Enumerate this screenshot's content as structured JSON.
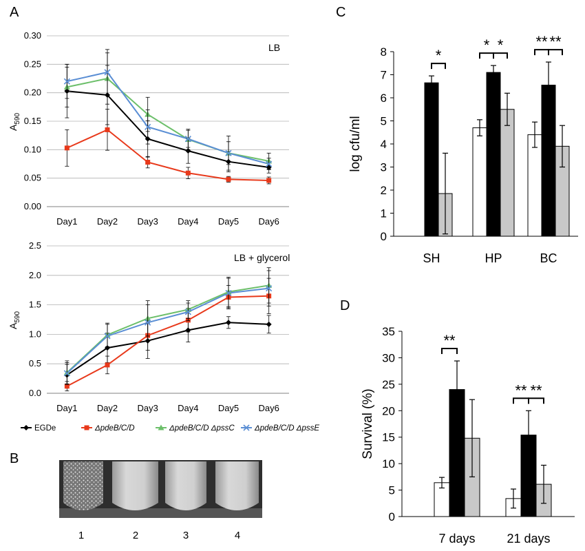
{
  "panels": {
    "A": "A",
    "B": "B",
    "C": "C",
    "D": "D"
  },
  "series_colors": {
    "EGDe": "#000000",
    "pdeB": "#e8391b",
    "pssC": "#6cbf6a",
    "pssE": "#5a8ed4"
  },
  "chart_data": [
    {
      "type": "line",
      "panel": "A-top",
      "annotation": "LB",
      "ylabel": "A590",
      "ylabel_main": "A",
      "ylabel_sub": "590",
      "ylim": [
        0,
        0.3
      ],
      "yticks": [
        "0.00",
        "0.05",
        "0.10",
        "0.15",
        "0.20",
        "0.25",
        "0.30"
      ],
      "categories": [
        "Day1",
        "Day2",
        "Day3",
        "Day4",
        "Day5",
        "Day6"
      ],
      "series": [
        {
          "name": "EGDe",
          "values": [
            0.203,
            0.196,
            0.119,
            0.098,
            0.079,
            0.069
          ],
          "errors": [
            0.047,
            0.052,
            0.032,
            0.022,
            0.018,
            0.01
          ]
        },
        {
          "name": "ΔpdeB/C/D",
          "values": [
            0.103,
            0.135,
            0.078,
            0.059,
            0.048,
            0.046
          ],
          "errors": [
            0.032,
            0.036,
            0.01,
            0.01,
            0.005,
            0.006
          ]
        },
        {
          "name": "ΔpdeB/C/D ΔpssC",
          "values": [
            0.21,
            0.225,
            0.162,
            0.118,
            0.094,
            0.08
          ],
          "errors": [
            0.035,
            0.045,
            0.03,
            0.018,
            0.03,
            0.014
          ]
        },
        {
          "name": "ΔpdeB/C/D ΔpssE",
          "values": [
            0.22,
            0.236,
            0.14,
            0.119,
            0.094,
            0.075
          ],
          "errors": [
            0.03,
            0.04,
            0.03,
            0.015,
            0.02,
            0.01
          ]
        }
      ]
    },
    {
      "type": "line",
      "panel": "A-bottom",
      "annotation": "LB + glycerol",
      "ylabel": "A590",
      "ylabel_main": "A",
      "ylabel_sub": "590",
      "ylim": [
        0,
        2.5
      ],
      "yticks": [
        "0.0",
        "0.5",
        "1.0",
        "1.5",
        "2.0",
        "2.5"
      ],
      "categories": [
        "Day1",
        "Day2",
        "Day3",
        "Day4",
        "Day5",
        "Day6"
      ],
      "series": [
        {
          "name": "EGDe",
          "values": [
            0.31,
            0.77,
            0.89,
            1.07,
            1.2,
            1.17
          ],
          "errors": [
            0.18,
            0.25,
            0.3,
            0.2,
            0.1,
            0.15
          ]
        },
        {
          "name": "ΔpdeB/C/D",
          "values": [
            0.12,
            0.48,
            0.98,
            1.24,
            1.63,
            1.65
          ],
          "errors": [
            0.08,
            0.15,
            0.25,
            0.2,
            0.2,
            0.3
          ]
        },
        {
          "name": "ΔpdeB/C/D ΔpssC",
          "values": [
            0.35,
            0.99,
            1.27,
            1.42,
            1.72,
            1.83
          ],
          "errors": [
            0.2,
            0.2,
            0.3,
            0.15,
            0.25,
            0.3
          ]
        },
        {
          "name": "ΔpdeB/C/D ΔpssE",
          "values": [
            0.34,
            0.97,
            1.2,
            1.38,
            1.7,
            1.78
          ],
          "errors": [
            0.18,
            0.2,
            0.3,
            0.15,
            0.25,
            0.3
          ]
        }
      ],
      "legend": [
        "EGDe",
        "ΔpdeB/C/D",
        "ΔpdeB/C/D ΔpssC",
        "ΔpdeB/C/D ΔpssE"
      ]
    },
    {
      "type": "bar",
      "panel": "C",
      "ylabel": "log cfu/ml",
      "ylim": [
        0,
        8
      ],
      "yticks": [
        "0",
        "1",
        "2",
        "3",
        "4",
        "5",
        "6",
        "7",
        "8"
      ],
      "categories": [
        "SH",
        "HP",
        "BC"
      ],
      "series": [
        {
          "fill": "#ffffff",
          "values": [
            0.0,
            4.7,
            4.4
          ],
          "errors": [
            0.0,
            0.35,
            0.55
          ]
        },
        {
          "fill": "#000000",
          "values": [
            6.65,
            7.1,
            6.55
          ],
          "errors": [
            0.3,
            0.3,
            1.0
          ]
        },
        {
          "fill": "#c8c8c8",
          "values": [
            1.85,
            5.5,
            3.9
          ],
          "errors": [
            1.75,
            0.7,
            0.9
          ]
        }
      ],
      "significance": [
        {
          "category": "SH",
          "pair": [
            1,
            2
          ],
          "label": "*"
        },
        {
          "category": "HP",
          "pair": [
            0,
            1
          ],
          "label": "*"
        },
        {
          "category": "HP",
          "pair": [
            1,
            2
          ],
          "label": "*"
        },
        {
          "category": "BC",
          "pair": [
            0,
            1
          ],
          "label": "**"
        },
        {
          "category": "BC",
          "pair": [
            1,
            2
          ],
          "label": "**"
        }
      ]
    },
    {
      "type": "bar",
      "panel": "D",
      "ylabel": "Survival (%)",
      "ylim": [
        0,
        35
      ],
      "yticks": [
        "0",
        "5",
        "10",
        "15",
        "20",
        "25",
        "30",
        "35"
      ],
      "categories": [
        "7 days",
        "21 days"
      ],
      "series": [
        {
          "fill": "#ffffff",
          "values": [
            6.4,
            3.4
          ],
          "errors": [
            1.0,
            1.8
          ]
        },
        {
          "fill": "#000000",
          "values": [
            24.0,
            15.4
          ],
          "errors": [
            5.4,
            4.6
          ]
        },
        {
          "fill": "#c8c8c8",
          "values": [
            14.8,
            6.1
          ],
          "errors": [
            7.3,
            3.6
          ]
        }
      ],
      "significance": [
        {
          "category": "7 days",
          "pair": [
            0,
            1
          ],
          "label": "**"
        },
        {
          "category": "21 days",
          "pair": [
            0,
            1
          ],
          "label": "**"
        },
        {
          "category": "21 days",
          "pair": [
            1,
            2
          ],
          "label": "**"
        }
      ]
    }
  ],
  "photo": {
    "tube_labels": [
      "1",
      "2",
      "3",
      "4"
    ]
  }
}
